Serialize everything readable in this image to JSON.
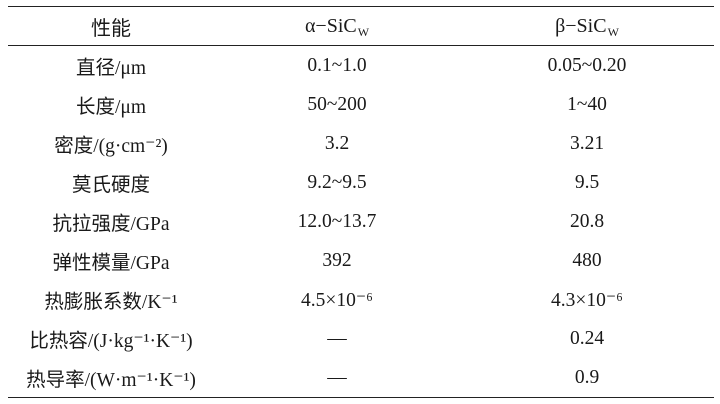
{
  "table": {
    "headers": {
      "property": "性能",
      "alpha": {
        "text": "α−SiC",
        "sub": "W"
      },
      "beta": {
        "text": "β−SiC",
        "sub": "W"
      }
    },
    "rows": [
      {
        "property": "直径/μm",
        "alpha": "0.1~1.0",
        "beta": "0.05~0.20"
      },
      {
        "property": "长度/μm",
        "alpha": "50~200",
        "beta": "1~40"
      },
      {
        "property": "密度/(g·cm⁻²)",
        "alpha": "3.2",
        "beta": "3.21"
      },
      {
        "property": "莫氏硬度",
        "alpha": "9.2~9.5",
        "beta": "9.5"
      },
      {
        "property": "抗拉强度/GPa",
        "alpha": "12.0~13.7",
        "beta": "20.8"
      },
      {
        "property": "弹性模量/GPa",
        "alpha": "392",
        "beta": "480"
      },
      {
        "property": "热膨胀系数/K⁻¹",
        "alpha": "4.5×10⁻⁶",
        "beta": "4.3×10⁻⁶"
      },
      {
        "property": "比热容/(J·kg⁻¹·K⁻¹)",
        "alpha": "—",
        "beta": "0.24"
      },
      {
        "property": "热导率/(W·m⁻¹·K⁻¹)",
        "alpha": "—",
        "beta": "0.9"
      }
    ]
  }
}
